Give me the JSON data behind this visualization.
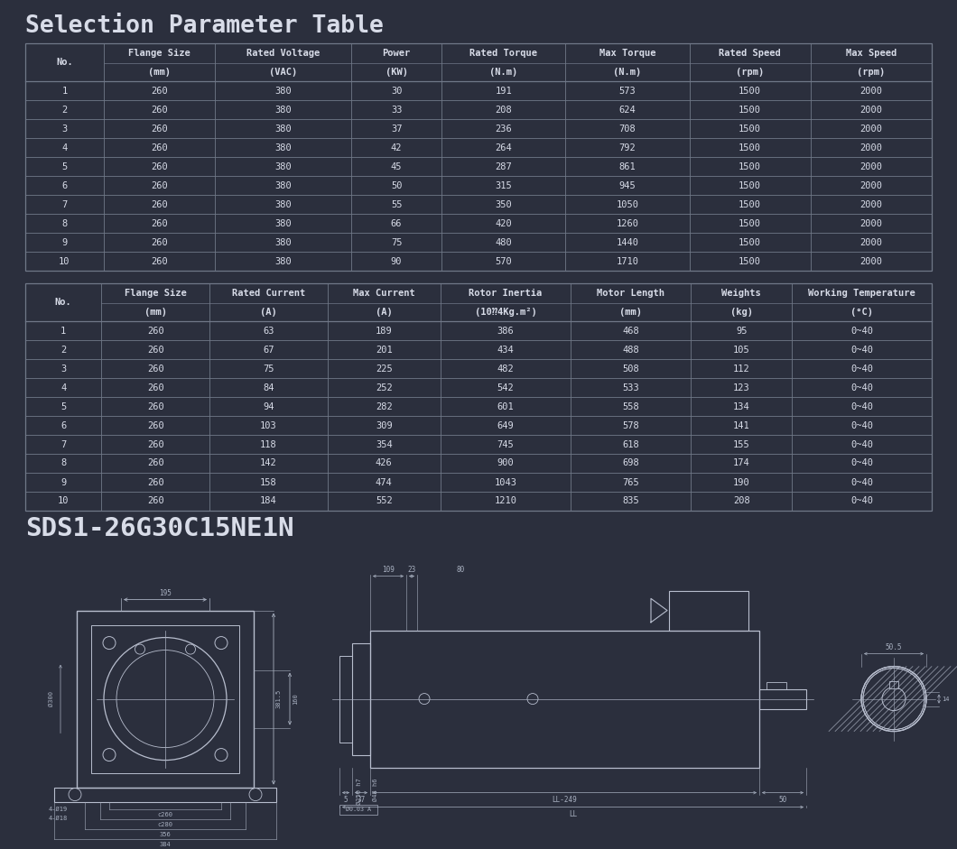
{
  "bg_color": "#2b2f3d",
  "text_color": "#d8dce8",
  "line_color": "#707888",
  "dim_color": "#a8b0c0",
  "draw_color": "#b8bece",
  "title": "Selection Parameter Table",
  "model_label": "SDS1-26G30C15NE1N",
  "table1_col_headers": [
    "No.",
    "Flange Size\n(mm)",
    "Rated Voltage\n(VAC)",
    "Power\n(KW)",
    "Rated Torque\n(N.m)",
    "Max Torque\n(N.m)",
    "Rated Speed\n(rpm)",
    "Max Speed\n(rpm)"
  ],
  "table1_data": [
    [
      "1",
      "260",
      "380",
      "30",
      "191",
      "573",
      "1500",
      "2000"
    ],
    [
      "2",
      "260",
      "380",
      "33",
      "208",
      "624",
      "1500",
      "2000"
    ],
    [
      "3",
      "260",
      "380",
      "37",
      "236",
      "708",
      "1500",
      "2000"
    ],
    [
      "4",
      "260",
      "380",
      "42",
      "264",
      "792",
      "1500",
      "2000"
    ],
    [
      "5",
      "260",
      "380",
      "45",
      "287",
      "861",
      "1500",
      "2000"
    ],
    [
      "6",
      "260",
      "380",
      "50",
      "315",
      "945",
      "1500",
      "2000"
    ],
    [
      "7",
      "260",
      "380",
      "55",
      "350",
      "1050",
      "1500",
      "2000"
    ],
    [
      "8",
      "260",
      "380",
      "66",
      "420",
      "1260",
      "1500",
      "2000"
    ],
    [
      "9",
      "260",
      "380",
      "75",
      "480",
      "1440",
      "1500",
      "2000"
    ],
    [
      "10",
      "260",
      "380",
      "90",
      "570",
      "1710",
      "1500",
      "2000"
    ]
  ],
  "table2_col_headers": [
    "No.",
    "Flange Size\n(mm)",
    "Rated Current\n(A)",
    "Max Current\n(A)",
    "Rotor Inertia\n(10⁇4Kg.m²)",
    "Motor Length\n(mm)",
    "Weights\n(kg)",
    "Working Temperature\n(°C)"
  ],
  "table2_data": [
    [
      "1",
      "260",
      "63",
      "189",
      "386",
      "468",
      "95",
      "0~40"
    ],
    [
      "2",
      "260",
      "67",
      "201",
      "434",
      "488",
      "105",
      "0~40"
    ],
    [
      "3",
      "260",
      "75",
      "225",
      "482",
      "508",
      "112",
      "0~40"
    ],
    [
      "4",
      "260",
      "84",
      "252",
      "542",
      "533",
      "123",
      "0~40"
    ],
    [
      "5",
      "260",
      "94",
      "282",
      "601",
      "558",
      "134",
      "0~40"
    ],
    [
      "6",
      "260",
      "103",
      "309",
      "649",
      "578",
      "141",
      "0~40"
    ],
    [
      "7",
      "260",
      "118",
      "354",
      "745",
      "618",
      "155",
      "0~40"
    ],
    [
      "8",
      "260",
      "142",
      "426",
      "900",
      "698",
      "174",
      "0~40"
    ],
    [
      "9",
      "260",
      "158",
      "474",
      "1043",
      "765",
      "190",
      "0~40"
    ],
    [
      "10",
      "260",
      "184",
      "552",
      "1210",
      "835",
      "208",
      "0~40"
    ]
  ]
}
